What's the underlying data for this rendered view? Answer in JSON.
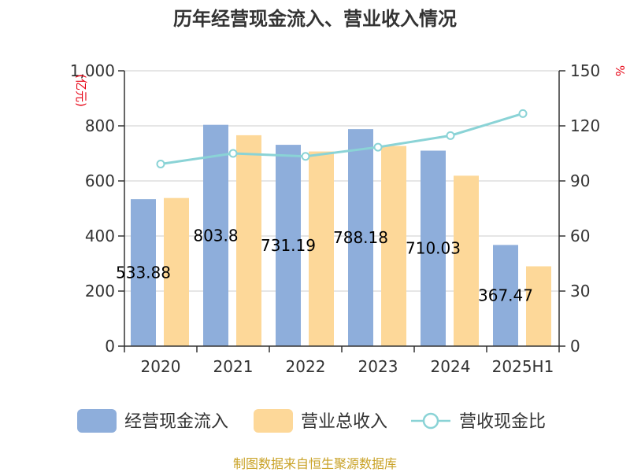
{
  "chart_data": {
    "type": "bar",
    "title": "历年经营现金流入、营业收入情况",
    "categories": [
      "2020",
      "2021",
      "2022",
      "2023",
      "2024",
      "2025H1"
    ],
    "y_left": {
      "unit": "(亿元)",
      "ticks": [
        "0",
        "200",
        "400",
        "600",
        "800",
        "1,000"
      ],
      "ylim": [
        0,
        1000
      ]
    },
    "y_right": {
      "unit": "%",
      "ticks": [
        "0",
        "30",
        "60",
        "90",
        "120",
        "150"
      ],
      "ylim": [
        0,
        150
      ]
    },
    "series": [
      {
        "name": "经营现金流入",
        "kind": "bar",
        "axis": "left",
        "color": "#8eaedb",
        "values": [
          533.88,
          803.8,
          731.19,
          788.18,
          710.03,
          367.47
        ],
        "labels": [
          "533.88",
          "803.8",
          "731.19",
          "788.18",
          "710.03",
          "367.47"
        ]
      },
      {
        "name": "营业总收入",
        "kind": "bar",
        "axis": "left",
        "color": "#fdd899",
        "values": [
          538,
          766,
          707,
          727,
          619,
          290
        ]
      },
      {
        "name": "营收现金比",
        "kind": "line",
        "axis": "right",
        "color": "#8ad3d6",
        "values": [
          99.2,
          105,
          103.4,
          108.4,
          114.7,
          126.7
        ]
      }
    ],
    "legend_position": "bottom",
    "grid": true
  },
  "source": "制图数据来自恒生聚源数据库"
}
